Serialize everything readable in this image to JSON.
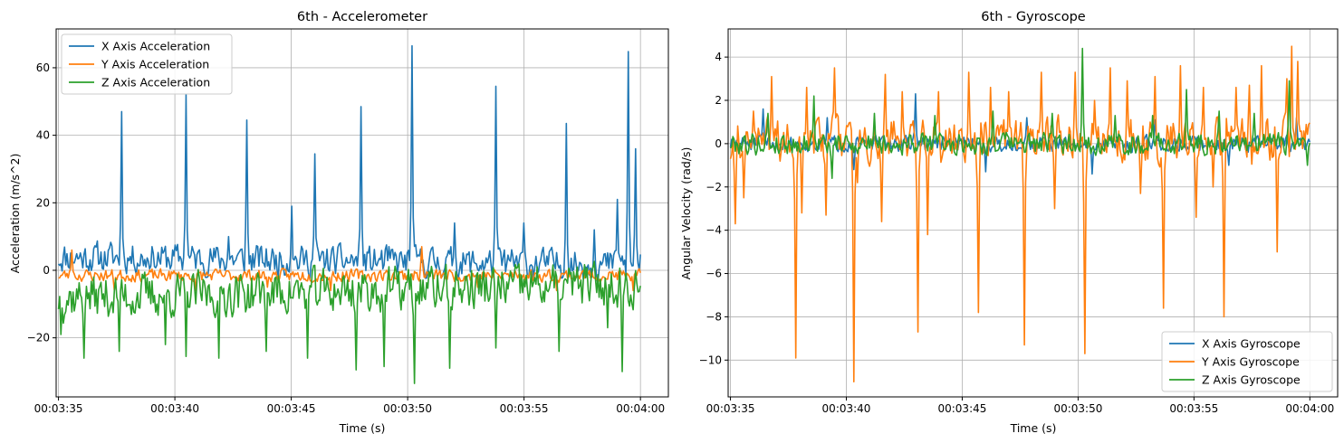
{
  "chart_data": [
    {
      "type": "line",
      "title": "6th - Accelerometer",
      "xlabel": "Time (s)",
      "ylabel": "Acceleration (m/s^2)",
      "x_ticks": [
        "00:03:35",
        "00:03:40",
        "00:03:45",
        "00:03:50",
        "00:03:55",
        "00:04:00"
      ],
      "x_tick_seconds": [
        215,
        220,
        225,
        230,
        235,
        240
      ],
      "xlim_seconds": [
        214.9,
        241.2
      ],
      "xdata_range_seconds": [
        215.0,
        240.0
      ],
      "y_ticks": [
        -20,
        0,
        20,
        40,
        60
      ],
      "ylim": [
        -37.5,
        71.5
      ],
      "grid": true,
      "legend_position": "upper left",
      "series": [
        {
          "name": "X Axis Acceleration",
          "color": "#1f77b4",
          "level": [
            4,
            1.5
          ],
          "noise": 4.5,
          "seed": 11,
          "spikes": [
            [
              217.7,
              47
            ],
            [
              219.0,
              7
            ],
            [
              220.5,
              52
            ],
            [
              222.3,
              10
            ],
            [
              223.1,
              44.5
            ],
            [
              225.0,
              19
            ],
            [
              226.0,
              34.5
            ],
            [
              228.0,
              48.5
            ],
            [
              229.2,
              7
            ],
            [
              230.2,
              66.5
            ],
            [
              232.0,
              14
            ],
            [
              233.8,
              54.5
            ],
            [
              235.0,
              14
            ],
            [
              236.8,
              43.5
            ],
            [
              238.0,
              12
            ],
            [
              239.0,
              21
            ],
            [
              239.5,
              64.8
            ],
            [
              239.8,
              36
            ]
          ]
        },
        {
          "name": "Y Axis Acceleration",
          "color": "#ff7f0e",
          "level": [
            -1.5,
            -1.5
          ],
          "noise": 1.8,
          "seed": 23,
          "spikes": [
            [
              215.6,
              6
            ],
            [
              217.4,
              -6
            ],
            [
              220.9,
              -6
            ],
            [
              224.0,
              -5
            ],
            [
              226.7,
              -6
            ],
            [
              230.6,
              7
            ],
            [
              233.0,
              -5
            ],
            [
              236.4,
              -6
            ],
            [
              239.7,
              -6
            ]
          ]
        },
        {
          "name": "Z Axis Acceleration",
          "color": "#2ca02c",
          "level": [
            -8,
            -4
          ],
          "noise": 6.5,
          "seed": 37,
          "spikes": [
            [
              215.0,
              -11.5
            ],
            [
              215.1,
              -19
            ],
            [
              216.1,
              -26
            ],
            [
              217.6,
              -24
            ],
            [
              219.6,
              -22
            ],
            [
              220.5,
              -25.5
            ],
            [
              221.9,
              -26
            ],
            [
              223.9,
              -24
            ],
            [
              225.7,
              -26
            ],
            [
              227.8,
              -29.5
            ],
            [
              229.0,
              -28.5
            ],
            [
              230.3,
              -33.5
            ],
            [
              231.8,
              -29
            ],
            [
              233.8,
              -23
            ],
            [
              236.5,
              -24
            ],
            [
              238.6,
              -17
            ],
            [
              239.2,
              -30
            ]
          ]
        }
      ]
    },
    {
      "type": "line",
      "title": "6th - Gyroscope",
      "xlabel": "Time (s)",
      "ylabel": "Angular Velocity (rad/s)",
      "x_ticks": [
        "00:03:35",
        "00:03:40",
        "00:03:45",
        "00:03:50",
        "00:03:55",
        "00:04:00"
      ],
      "x_tick_seconds": [
        215,
        220,
        225,
        230,
        235,
        240
      ],
      "xlim_seconds": [
        214.9,
        241.2
      ],
      "xdata_range_seconds": [
        215.0,
        240.0
      ],
      "y_ticks": [
        -10,
        -8,
        -6,
        -4,
        -2,
        0,
        2,
        4
      ],
      "ylim": [
        -11.7,
        5.3
      ],
      "grid": true,
      "legend_position": "lower right",
      "series": [
        {
          "name": "X Axis Gyroscope",
          "color": "#1f77b4",
          "level": [
            0,
            0
          ],
          "noise": 0.35,
          "seed": 51,
          "spikes": [
            [
              216.4,
              1.6
            ],
            [
              219.2,
              1.2
            ],
            [
              220.3,
              -1.2
            ],
            [
              223.0,
              2.3
            ],
            [
              226.0,
              -1.3
            ],
            [
              227.8,
              1.2
            ],
            [
              230.6,
              -1.4
            ],
            [
              233.3,
              1.1
            ],
            [
              236.5,
              -1.0
            ],
            [
              239.4,
              1.2
            ]
          ]
        },
        {
          "name": "Y Axis Gyroscope",
          "color": "#ff7f0e",
          "level": [
            0.2,
            0.2
          ],
          "noise": 1.0,
          "seed": 64,
          "spikes": [
            [
              215.0,
              -0.7
            ],
            [
              215.2,
              -3.7
            ],
            [
              215.6,
              -2.5
            ],
            [
              216.0,
              1.5
            ],
            [
              216.8,
              3.1
            ],
            [
              217.8,
              -9.9
            ],
            [
              218.1,
              -3.2
            ],
            [
              218.3,
              2.6
            ],
            [
              219.1,
              -3.3
            ],
            [
              219.5,
              3.5
            ],
            [
              220.3,
              -11.0
            ],
            [
              220.5,
              -1.8
            ],
            [
              221.5,
              -3.6
            ],
            [
              221.7,
              3.2
            ],
            [
              222.4,
              2.4
            ],
            [
              223.1,
              -8.7
            ],
            [
              223.5,
              -4.2
            ],
            [
              224.0,
              2.4
            ],
            [
              225.3,
              3.3
            ],
            [
              225.7,
              -7.8
            ],
            [
              226.2,
              2.6
            ],
            [
              227.0,
              2.4
            ],
            [
              227.7,
              -9.3
            ],
            [
              228.4,
              3.3
            ],
            [
              229.0,
              -3.0
            ],
            [
              229.9,
              3.3
            ],
            [
              230.3,
              -9.7
            ],
            [
              230.7,
              2.0
            ],
            [
              231.4,
              3.5
            ],
            [
              232.1,
              2.9
            ],
            [
              232.7,
              -2.3
            ],
            [
              233.3,
              3.1
            ],
            [
              233.7,
              -7.6
            ],
            [
              234.4,
              3.6
            ],
            [
              235.1,
              -3.4
            ],
            [
              235.4,
              2.6
            ],
            [
              235.8,
              -2.0
            ],
            [
              236.3,
              -8.0
            ],
            [
              236.8,
              2.6
            ],
            [
              237.4,
              2.7
            ],
            [
              237.9,
              3.6
            ],
            [
              238.6,
              -5.0
            ],
            [
              239.0,
              3.0
            ],
            [
              239.2,
              4.5
            ],
            [
              239.5,
              3.8
            ]
          ]
        },
        {
          "name": "Z Axis Gyroscope",
          "color": "#2ca02c",
          "level": [
            0,
            0
          ],
          "noise": 0.5,
          "seed": 79,
          "spikes": [
            [
              216.6,
              1.4
            ],
            [
              218.6,
              2.2
            ],
            [
              219.4,
              -1.6
            ],
            [
              221.2,
              1.4
            ],
            [
              223.8,
              1.3
            ],
            [
              226.3,
              1.5
            ],
            [
              228.9,
              1.4
            ],
            [
              230.2,
              4.4
            ],
            [
              231.6,
              1.3
            ],
            [
              233.2,
              1.3
            ],
            [
              234.7,
              2.5
            ],
            [
              236.1,
              1.5
            ],
            [
              237.6,
              1.4
            ],
            [
              239.1,
              2.9
            ],
            [
              239.9,
              -1.0
            ]
          ]
        }
      ]
    }
  ]
}
